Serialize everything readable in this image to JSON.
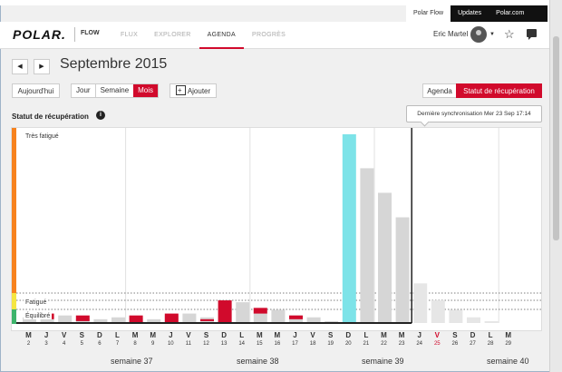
{
  "top_links": [
    {
      "label": "Polar Flow",
      "active": true
    },
    {
      "label": "Updates",
      "active": false
    },
    {
      "label": "Polar.com",
      "active": false
    }
  ],
  "header": {
    "logo": "POLAR.",
    "flow": "FLOW",
    "nav": [
      {
        "label": "FLUX",
        "active": false
      },
      {
        "label": "EXPLORER",
        "active": false
      },
      {
        "label": "AGENDA",
        "active": true
      },
      {
        "label": "PROGRÈS",
        "active": false
      }
    ],
    "user_name": "Eric Martel"
  },
  "toolbar": {
    "prev_label": "◀",
    "next_label": "▶",
    "month_title": "Septembre 2015",
    "today_label": "Aujourd'hui",
    "view_day": "Jour",
    "view_week": "Semaine",
    "view_month": "Mois",
    "add_label": "Ajouter",
    "agenda_label": "Agenda",
    "recovery_label": "Statut de récupération"
  },
  "section_title": "Statut de récupération",
  "tooltip_text": "Dernière synchronisation Mer 23 Sep 17:14",
  "zones": {
    "tres_fatigue": "Très fatigué",
    "fatigue": "Fatigué",
    "equilibre": "Équilibré"
  },
  "colors": {
    "accent": "#d10a2c",
    "cyan": "#7de3e8",
    "grey": "#d6d6d6",
    "orange": "#f7821e",
    "yellow": "#f5e642",
    "green": "#3db36b"
  },
  "chart_data": {
    "type": "bar",
    "title": "Statut de récupération",
    "ylim": [
      0,
      100
    ],
    "categories": [
      "M 2",
      "J 3",
      "V 4",
      "S 5",
      "D 6",
      "L 7",
      "M 8",
      "M 9",
      "J 10",
      "V 11",
      "S 12",
      "D 13",
      "L 14",
      "M 15",
      "M 16",
      "J 17",
      "V 18",
      "S 19",
      "D 20",
      "L 21",
      "M 22",
      "M 23",
      "J 24",
      "V 25",
      "S 26",
      "D 27",
      "L 28",
      "M 29"
    ],
    "day_letters": [
      "M",
      "J",
      "V",
      "S",
      "D",
      "L",
      "M",
      "M",
      "J",
      "V",
      "S",
      "D",
      "L",
      "M",
      "M",
      "J",
      "V",
      "S",
      "D",
      "L",
      "M",
      "M",
      "J",
      "V",
      "S",
      "D",
      "L",
      "M"
    ],
    "day_numbers": [
      "2",
      "3",
      "4",
      "5",
      "6",
      "7",
      "8",
      "9",
      "10",
      "11",
      "12",
      "13",
      "14",
      "15",
      "16",
      "17",
      "18",
      "19",
      "20",
      "21",
      "22",
      "23",
      "24",
      "25",
      "26",
      "27",
      "28",
      "29"
    ],
    "highlight_day": "V 25",
    "series": [
      {
        "values": [
          3,
          2,
          4,
          2,
          2,
          3,
          3,
          2,
          4,
          5,
          3,
          12,
          11,
          8,
          7,
          4,
          3,
          1,
          100,
          82,
          69,
          56,
          21,
          12,
          7,
          3,
          1,
          0
        ]
      }
    ],
    "bar_kinds": [
      "grey",
      "red",
      "grey",
      "red",
      "grey",
      "grey",
      "red",
      "grey",
      "red",
      "grey",
      "red",
      "red",
      "grey",
      "red",
      "grey",
      "red",
      "grey",
      "grey",
      "cyan",
      "grey",
      "grey",
      "grey",
      "grey",
      "grey",
      "grey",
      "grey",
      "grey",
      "grey"
    ],
    "red_segments": [
      {
        "day": "J 3",
        "range": [
          2,
          5
        ]
      },
      {
        "day": "S 5",
        "range": [
          1,
          4
        ]
      },
      {
        "day": "M 8",
        "range": [
          0,
          4
        ]
      },
      {
        "day": "J 10",
        "range": [
          0,
          5
        ]
      },
      {
        "day": "S 12",
        "range": [
          1,
          2
        ]
      },
      {
        "day": "D 13",
        "range": [
          0,
          12
        ]
      },
      {
        "day": "M 15",
        "range": [
          5,
          8
        ]
      },
      {
        "day": "J 17",
        "range": [
          2,
          4
        ]
      }
    ],
    "current_day": "M 23",
    "weeks": [
      "semaine 37",
      "semaine 38",
      "semaine 39",
      "semaine 40"
    ]
  }
}
